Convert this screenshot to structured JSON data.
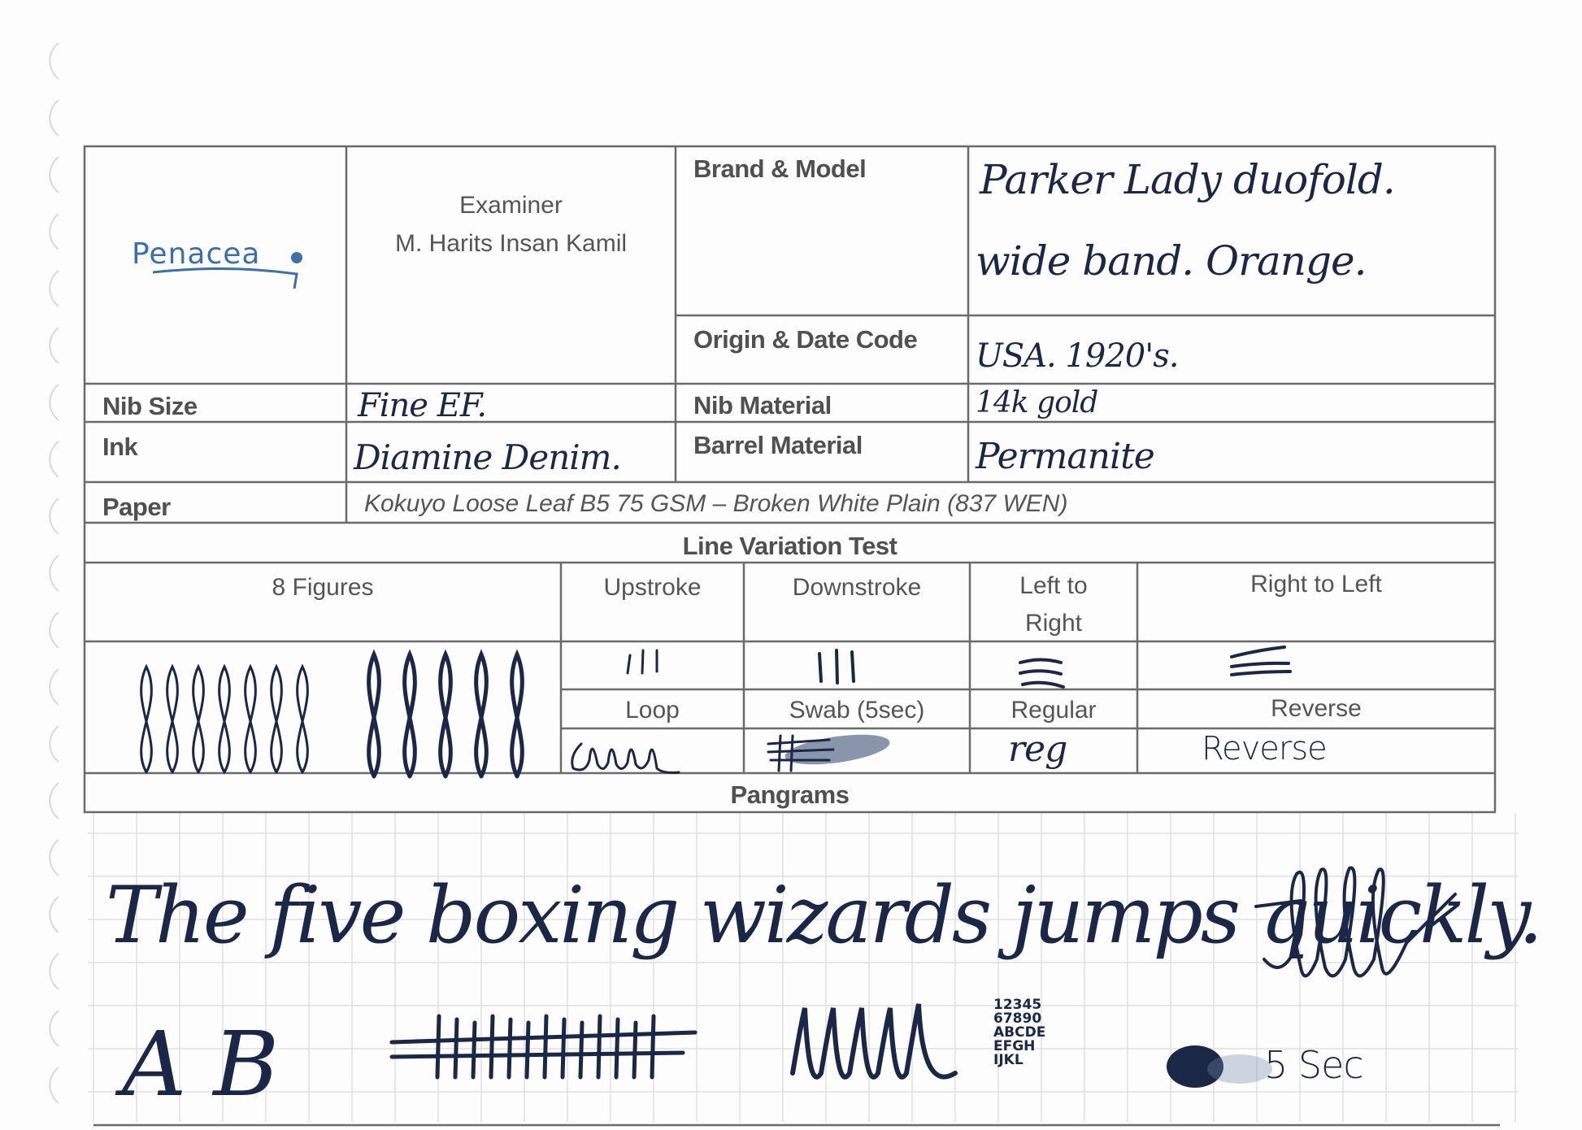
{
  "logo": {
    "text": "Penacea",
    "color": "#3d6fa8"
  },
  "header": {
    "examiner_label": "Examiner",
    "examiner_name": "M. Harits Insan Kamil",
    "brand_model_label": "Brand & Model",
    "brand_model_value_line1": "Parker Lady duofold.",
    "brand_model_value_line2": "wide band. Orange.",
    "origin_label": "Origin & Date Code",
    "origin_value": "USA. 1920's.",
    "nib_size_label": "Nib Size",
    "nib_size_value": "Fine EF.",
    "nib_material_label": "Nib Material",
    "nib_material_value": "14k gold",
    "ink_label": "Ink",
    "ink_value": "Diamine Denim.",
    "barrel_label": "Barrel Material",
    "barrel_value": "Permanite",
    "paper_label": "Paper",
    "paper_value": "Kokuyo Loose Leaf B5 75 GSM – Broken White Plain (837 WEN)"
  },
  "line_variation": {
    "title": "Line Variation Test",
    "figures_label": "8 Figures",
    "upstroke_label": "Upstroke",
    "downstroke_label": "Downstroke",
    "ltr_label_line1": "Left to",
    "ltr_label_line2": "Right",
    "rtl_label": "Right to Left",
    "loop_label": "Loop",
    "swab_label": "Swab (5sec)",
    "regular_label": "Regular",
    "reverse_label": "Reverse",
    "regular_sample": "reg",
    "reverse_sample": "Reverse"
  },
  "pangrams": {
    "title": "Pangrams",
    "sentence": "The five boxing wizards jumps quickly.",
    "letters": "A B",
    "numbers": [
      "12345",
      "67890",
      "ABCDE",
      "EFGH",
      "IJKL"
    ],
    "swab_note": "5 Sec"
  },
  "colors": {
    "ink": "#1b2746",
    "print": "#505050",
    "rule": "#6a6a6a",
    "grid": "#dcdcdc"
  }
}
